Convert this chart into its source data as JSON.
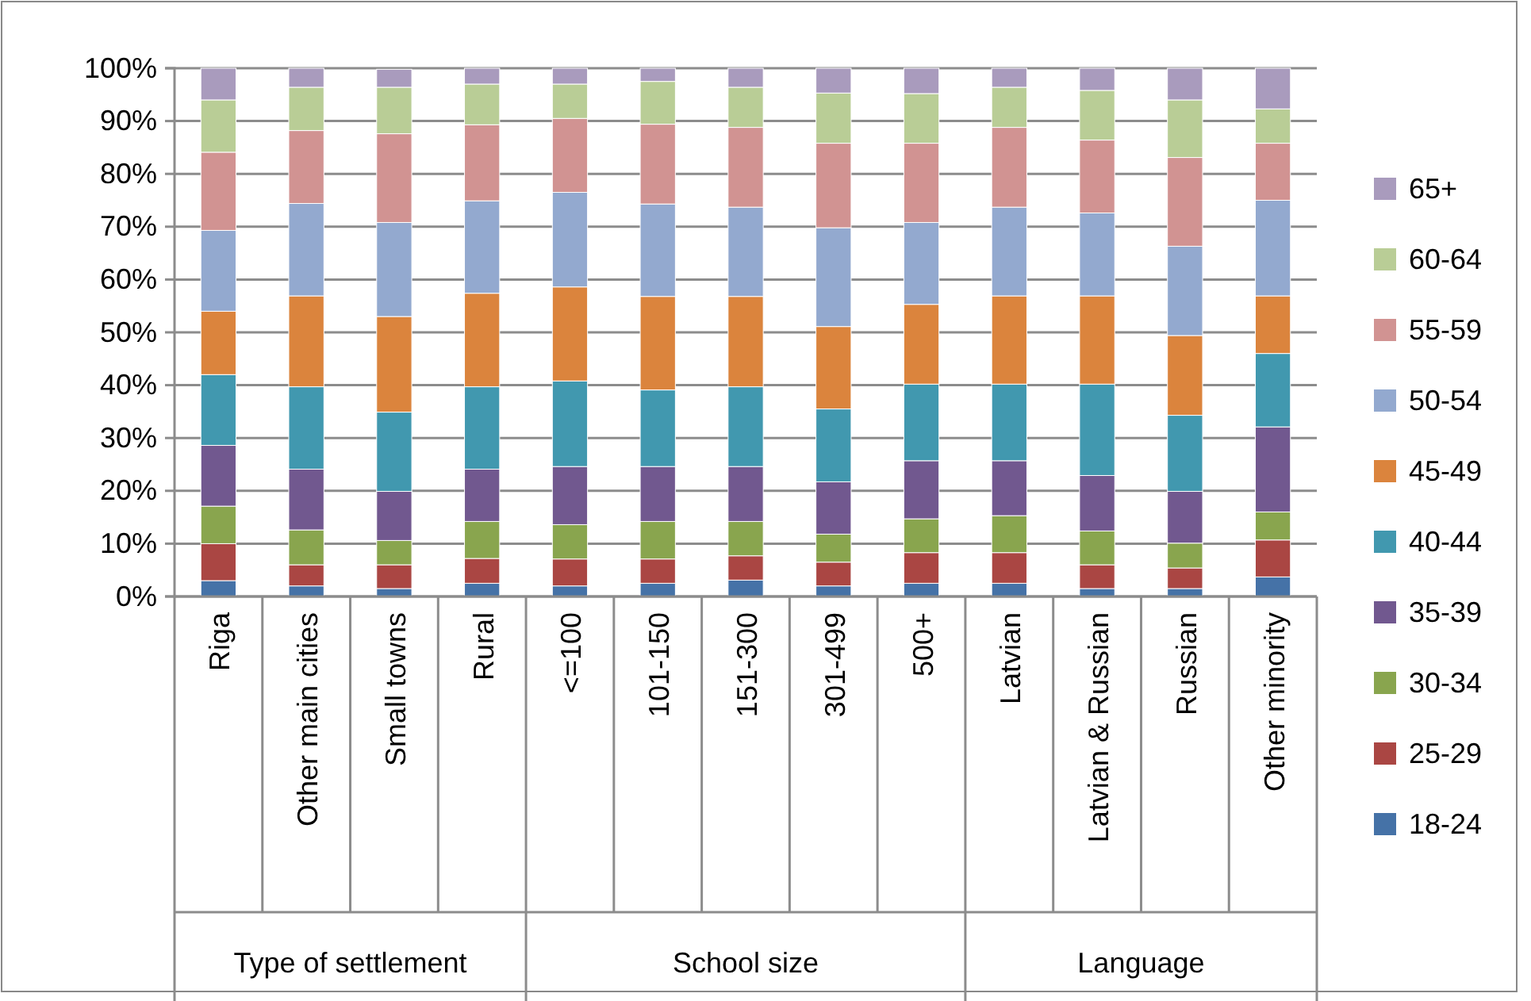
{
  "chart_data": {
    "type": "bar",
    "stacked": true,
    "categories": [
      "Riga",
      "Other main cities",
      "Small towns",
      "Rural",
      "<=100",
      "101-150",
      "151-300",
      "301-499",
      "500+",
      "Latvian",
      "Latvian & Russian",
      "Russian",
      "Other minority"
    ],
    "annotations": [
      "Type of settlement",
      "School size",
      "Language"
    ],
    "ylim": [
      0,
      100
    ],
    "yticks": [
      {
        "value": 0,
        "label": "0%"
      },
      {
        "value": 10,
        "label": "10%"
      },
      {
        "value": 20,
        "label": "20%"
      },
      {
        "value": 30,
        "label": "30%"
      },
      {
        "value": 40,
        "label": "40%"
      },
      {
        "value": 50,
        "label": "50%"
      },
      {
        "value": 60,
        "label": "60%"
      },
      {
        "value": 70,
        "label": "70%"
      },
      {
        "value": 80,
        "label": "80%"
      },
      {
        "value": 90,
        "label": "90%"
      },
      {
        "value": 100,
        "label": "100%"
      }
    ],
    "grid": "y",
    "legend": "right",
    "series": [
      {
        "name": "18-24",
        "color": "#4572a7",
        "values": [
          3.0,
          2.0,
          1.5,
          2.5,
          2.0,
          2.5,
          3.1,
          2.0,
          2.5,
          2.5,
          1.5,
          1.5,
          3.7
        ]
      },
      {
        "name": "25-29",
        "color": "#aa4643",
        "values": [
          7.0,
          4.0,
          4.5,
          4.7,
          5.1,
          4.6,
          4.6,
          4.5,
          5.8,
          5.8,
          4.5,
          3.9,
          7.0
        ]
      },
      {
        "name": "30-34",
        "color": "#89a54e",
        "values": [
          7.1,
          6.6,
          4.6,
          7.0,
          6.5,
          7.1,
          6.5,
          5.3,
          6.4,
          7.0,
          6.4,
          4.7,
          5.3
        ]
      },
      {
        "name": "35-39",
        "color": "#71588f",
        "values": [
          11.5,
          11.5,
          9.3,
          9.9,
          11.0,
          10.4,
          10.4,
          9.9,
          11.0,
          10.4,
          10.5,
          9.8,
          16.1
        ]
      },
      {
        "name": "40-44",
        "color": "#4198af",
        "values": [
          13.4,
          15.6,
          15.0,
          15.6,
          16.2,
          14.5,
          15.1,
          13.8,
          14.5,
          14.5,
          17.3,
          14.4,
          13.9
        ]
      },
      {
        "name": "45-49",
        "color": "#db843d",
        "values": [
          12.0,
          17.2,
          18.1,
          17.7,
          17.8,
          17.7,
          17.1,
          15.6,
          15.1,
          16.7,
          16.7,
          15.1,
          10.9
        ]
      },
      {
        "name": "50-54",
        "color": "#93a9cf",
        "values": [
          15.3,
          17.5,
          17.8,
          17.5,
          17.9,
          17.5,
          16.9,
          18.7,
          15.5,
          16.8,
          15.7,
          16.9,
          18.1
        ]
      },
      {
        "name": "55-59",
        "color": "#d19392",
        "values": [
          14.8,
          13.8,
          16.8,
          14.4,
          14.0,
          15.1,
          15.1,
          16.0,
          15.0,
          15.1,
          13.8,
          16.8,
          10.8
        ]
      },
      {
        "name": "60-64",
        "color": "#b9cd96",
        "values": [
          9.9,
          8.2,
          8.8,
          7.7,
          6.5,
          8.1,
          7.6,
          9.5,
          9.4,
          7.6,
          9.4,
          10.9,
          6.5
        ]
      },
      {
        "name": "65+",
        "color": "#a99bbd",
        "values": [
          6.0,
          3.6,
          3.4,
          3.0,
          3.0,
          2.5,
          3.6,
          4.7,
          4.8,
          3.6,
          4.2,
          6.0,
          7.7
        ]
      }
    ]
  }
}
